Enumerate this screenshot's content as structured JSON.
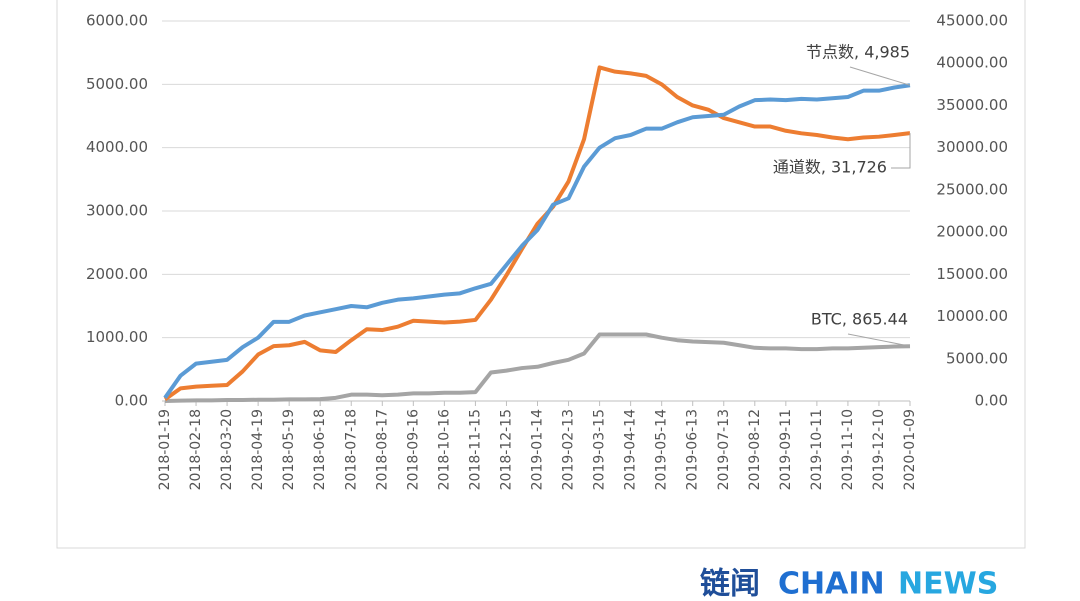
{
  "chart_data": {
    "type": "line",
    "categories": [
      "2018-01-19",
      null,
      "2018-02-18",
      null,
      "2018-03-20",
      null,
      "2018-04-19",
      null,
      "2018-05-19",
      null,
      "2018-06-18",
      null,
      "2018-07-18",
      null,
      "2018-08-17",
      null,
      "2018-09-16",
      null,
      "2018-10-16",
      null,
      "2018-11-15",
      null,
      "2018-12-15",
      null,
      "2019-01-14",
      null,
      "2019-02-13",
      null,
      "2019-03-15",
      null,
      "2019-04-14",
      null,
      "2019-05-14",
      null,
      "2019-06-13",
      null,
      "2019-07-13",
      null,
      "2019-08-12",
      null,
      "2019-09-11",
      null,
      "2019-10-11",
      null,
      "2019-11-10",
      null,
      "2019-12-10",
      null,
      "2020-01-09"
    ],
    "series": [
      {
        "name": "节点数",
        "color": "#5b9bd5",
        "values": [
          50,
          400,
          590,
          620,
          650,
          850,
          1000,
          1250,
          1250,
          1350,
          1400,
          1450,
          1500,
          1480,
          1550,
          1600,
          1620,
          1650,
          1680,
          1700,
          1780,
          1850,
          2150,
          2450,
          2700,
          3100,
          3200,
          3700,
          4000,
          4150,
          4200,
          4300,
          4300,
          4400,
          4480,
          4500,
          4520,
          4650,
          4750,
          4760,
          4750,
          4770,
          4760,
          4780,
          4800,
          4900,
          4900,
          4950,
          4985
        ]
      },
      {
        "name": "通道数",
        "color": "#ed7d31",
        "axis": "y2",
        "values": [
          200,
          1500,
          1700,
          1800,
          1900,
          3500,
          5500,
          6500,
          6600,
          7000,
          6000,
          5800,
          7200,
          8500,
          8400,
          8800,
          9500,
          9400,
          9300,
          9400,
          9600,
          12000,
          14900,
          18000,
          21000,
          23000,
          26000,
          31000,
          39500,
          39000,
          38800,
          38500,
          37500,
          36000,
          35000,
          34500,
          33500,
          33000,
          32500,
          32500,
          32000,
          31700,
          31500,
          31200,
          31000,
          31200,
          31300,
          31500,
          31726
        ]
      },
      {
        "name": "BTC",
        "color": "#a5a5a5",
        "values": [
          0,
          5,
          10,
          10,
          15,
          15,
          20,
          20,
          25,
          25,
          30,
          50,
          100,
          100,
          90,
          100,
          120,
          120,
          130,
          130,
          140,
          450,
          480,
          520,
          540,
          600,
          650,
          750,
          1050,
          1050,
          1050,
          1050,
          1000,
          960,
          940,
          930,
          920,
          880,
          840,
          830,
          830,
          820,
          820,
          830,
          830,
          840,
          850,
          860,
          865.44
        ]
      }
    ],
    "ylim": [
      0,
      6000
    ],
    "yticks": [
      {
        "value": 0,
        "label": "0.00"
      },
      {
        "value": 1000,
        "label": "1000.00"
      },
      {
        "value": 2000,
        "label": "2000.00"
      },
      {
        "value": 3000,
        "label": "3000.00"
      },
      {
        "value": 4000,
        "label": "4000.00"
      },
      {
        "value": 5000,
        "label": "5000.00"
      },
      {
        "value": 6000,
        "label": "6000.00"
      }
    ],
    "y2lim": [
      0,
      45000
    ],
    "y2ticks": [
      {
        "value": 0,
        "label": "0.00"
      },
      {
        "value": 5000,
        "label": "5000.00"
      },
      {
        "value": 10000,
        "label": "10000.00"
      },
      {
        "value": 15000,
        "label": "15000.00"
      },
      {
        "value": 20000,
        "label": "20000.00"
      },
      {
        "value": 25000,
        "label": "25000.00"
      },
      {
        "value": 30000,
        "label": "30000.00"
      },
      {
        "value": 35000,
        "label": "35000.00"
      },
      {
        "value": 40000,
        "label": "40000.00"
      },
      {
        "value": 45000,
        "label": "45000.00"
      }
    ],
    "grid": true,
    "annotations": [
      "节点数, 4,985",
      "通道数, 31,726",
      "BTC, 865.44"
    ],
    "brand": {
      "cn": "链闻",
      "en_1": "CHAIN",
      "en_2": "NEWS"
    }
  }
}
